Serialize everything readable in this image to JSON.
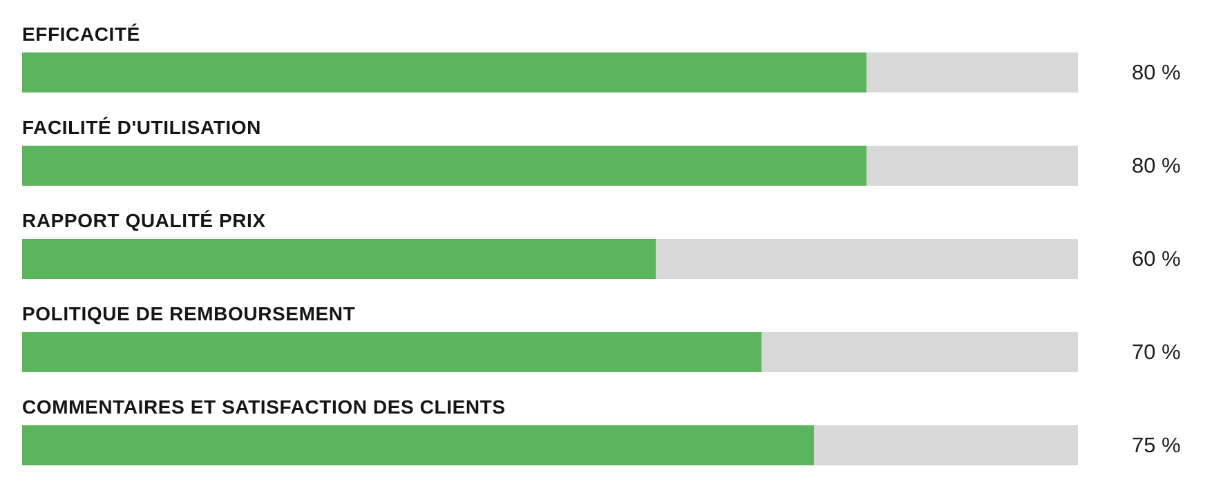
{
  "chart_data": {
    "type": "bar",
    "orientation": "horizontal",
    "title": "",
    "categories": [
      "EFFICACITÉ",
      "FACILITÉ D'UTILISATION",
      "RAPPORT QUALITÉ PRIX",
      "POLITIQUE DE REMBOURSEMENT",
      "COMMENTAIRES ET SATISFACTION DES CLIENTS"
    ],
    "values": [
      80,
      80,
      60,
      70,
      75
    ],
    "value_labels": [
      "80 %",
      "80 %",
      "60 %",
      "70 %",
      "75 %"
    ],
    "xlim": [
      0,
      100
    ],
    "grid": false,
    "legend": false,
    "layout": {
      "labels_position": "above-bar",
      "values_position": "right-of-track"
    },
    "colors": {
      "bar_fill": "#5cb45e",
      "bar_track": "#d8d8d8",
      "label_text": "#151515",
      "value_text": "#1c1c1c",
      "background": "#ffffff"
    }
  }
}
